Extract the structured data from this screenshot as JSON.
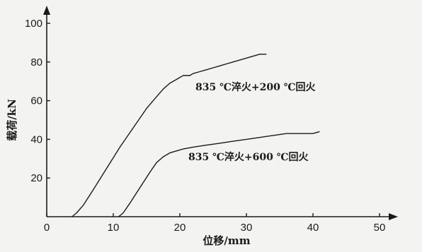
{
  "chart_data": {
    "type": "line",
    "xlabel": "位移/mm",
    "ylabel": "载荷/kN",
    "xlim": [
      0,
      50
    ],
    "ylim": [
      0,
      100
    ],
    "xticks": [
      0,
      10,
      20,
      30,
      40,
      50
    ],
    "yticks": [
      20,
      40,
      60,
      80,
      100
    ],
    "x_tick_labels": [
      "0",
      "10",
      "20",
      "30",
      "40",
      "50"
    ],
    "y_tick_labels": [
      "20",
      "40",
      "60",
      "80",
      "100"
    ],
    "grid": false,
    "series": [
      {
        "name": "835 ℃淬火+200 ℃回火",
        "x": [
          3.8,
          4.5,
          5.5,
          7,
          9,
          11,
          13,
          15,
          16.5,
          17.5,
          18.5,
          19.5,
          20.5,
          21.5,
          22,
          23,
          24,
          25,
          26,
          27,
          28,
          29,
          30,
          31,
          32,
          33
        ],
        "y": [
          0,
          2,
          6,
          14,
          25,
          36,
          46,
          56,
          62,
          66,
          69,
          71,
          73,
          73,
          74,
          75,
          76,
          77,
          78,
          79,
          80,
          81,
          82,
          83,
          84,
          84
        ]
      },
      {
        "name": "835 ℃淬火+600 ℃回火",
        "x": [
          10.8,
          11.5,
          12.5,
          14,
          15.5,
          16.5,
          17.5,
          18.5,
          19.5,
          20.5,
          22,
          24,
          26,
          28,
          30,
          32,
          34,
          36,
          38,
          40,
          41
        ],
        "y": [
          0,
          2,
          7,
          15,
          23,
          28,
          31,
          33,
          34,
          35,
          36,
          37,
          38,
          39,
          40,
          41,
          42,
          43,
          43,
          43,
          44
        ]
      }
    ],
    "annotations": [
      "835 ℃淬火+200 ℃回火",
      "835 ℃淬火+600 ℃回火"
    ]
  }
}
